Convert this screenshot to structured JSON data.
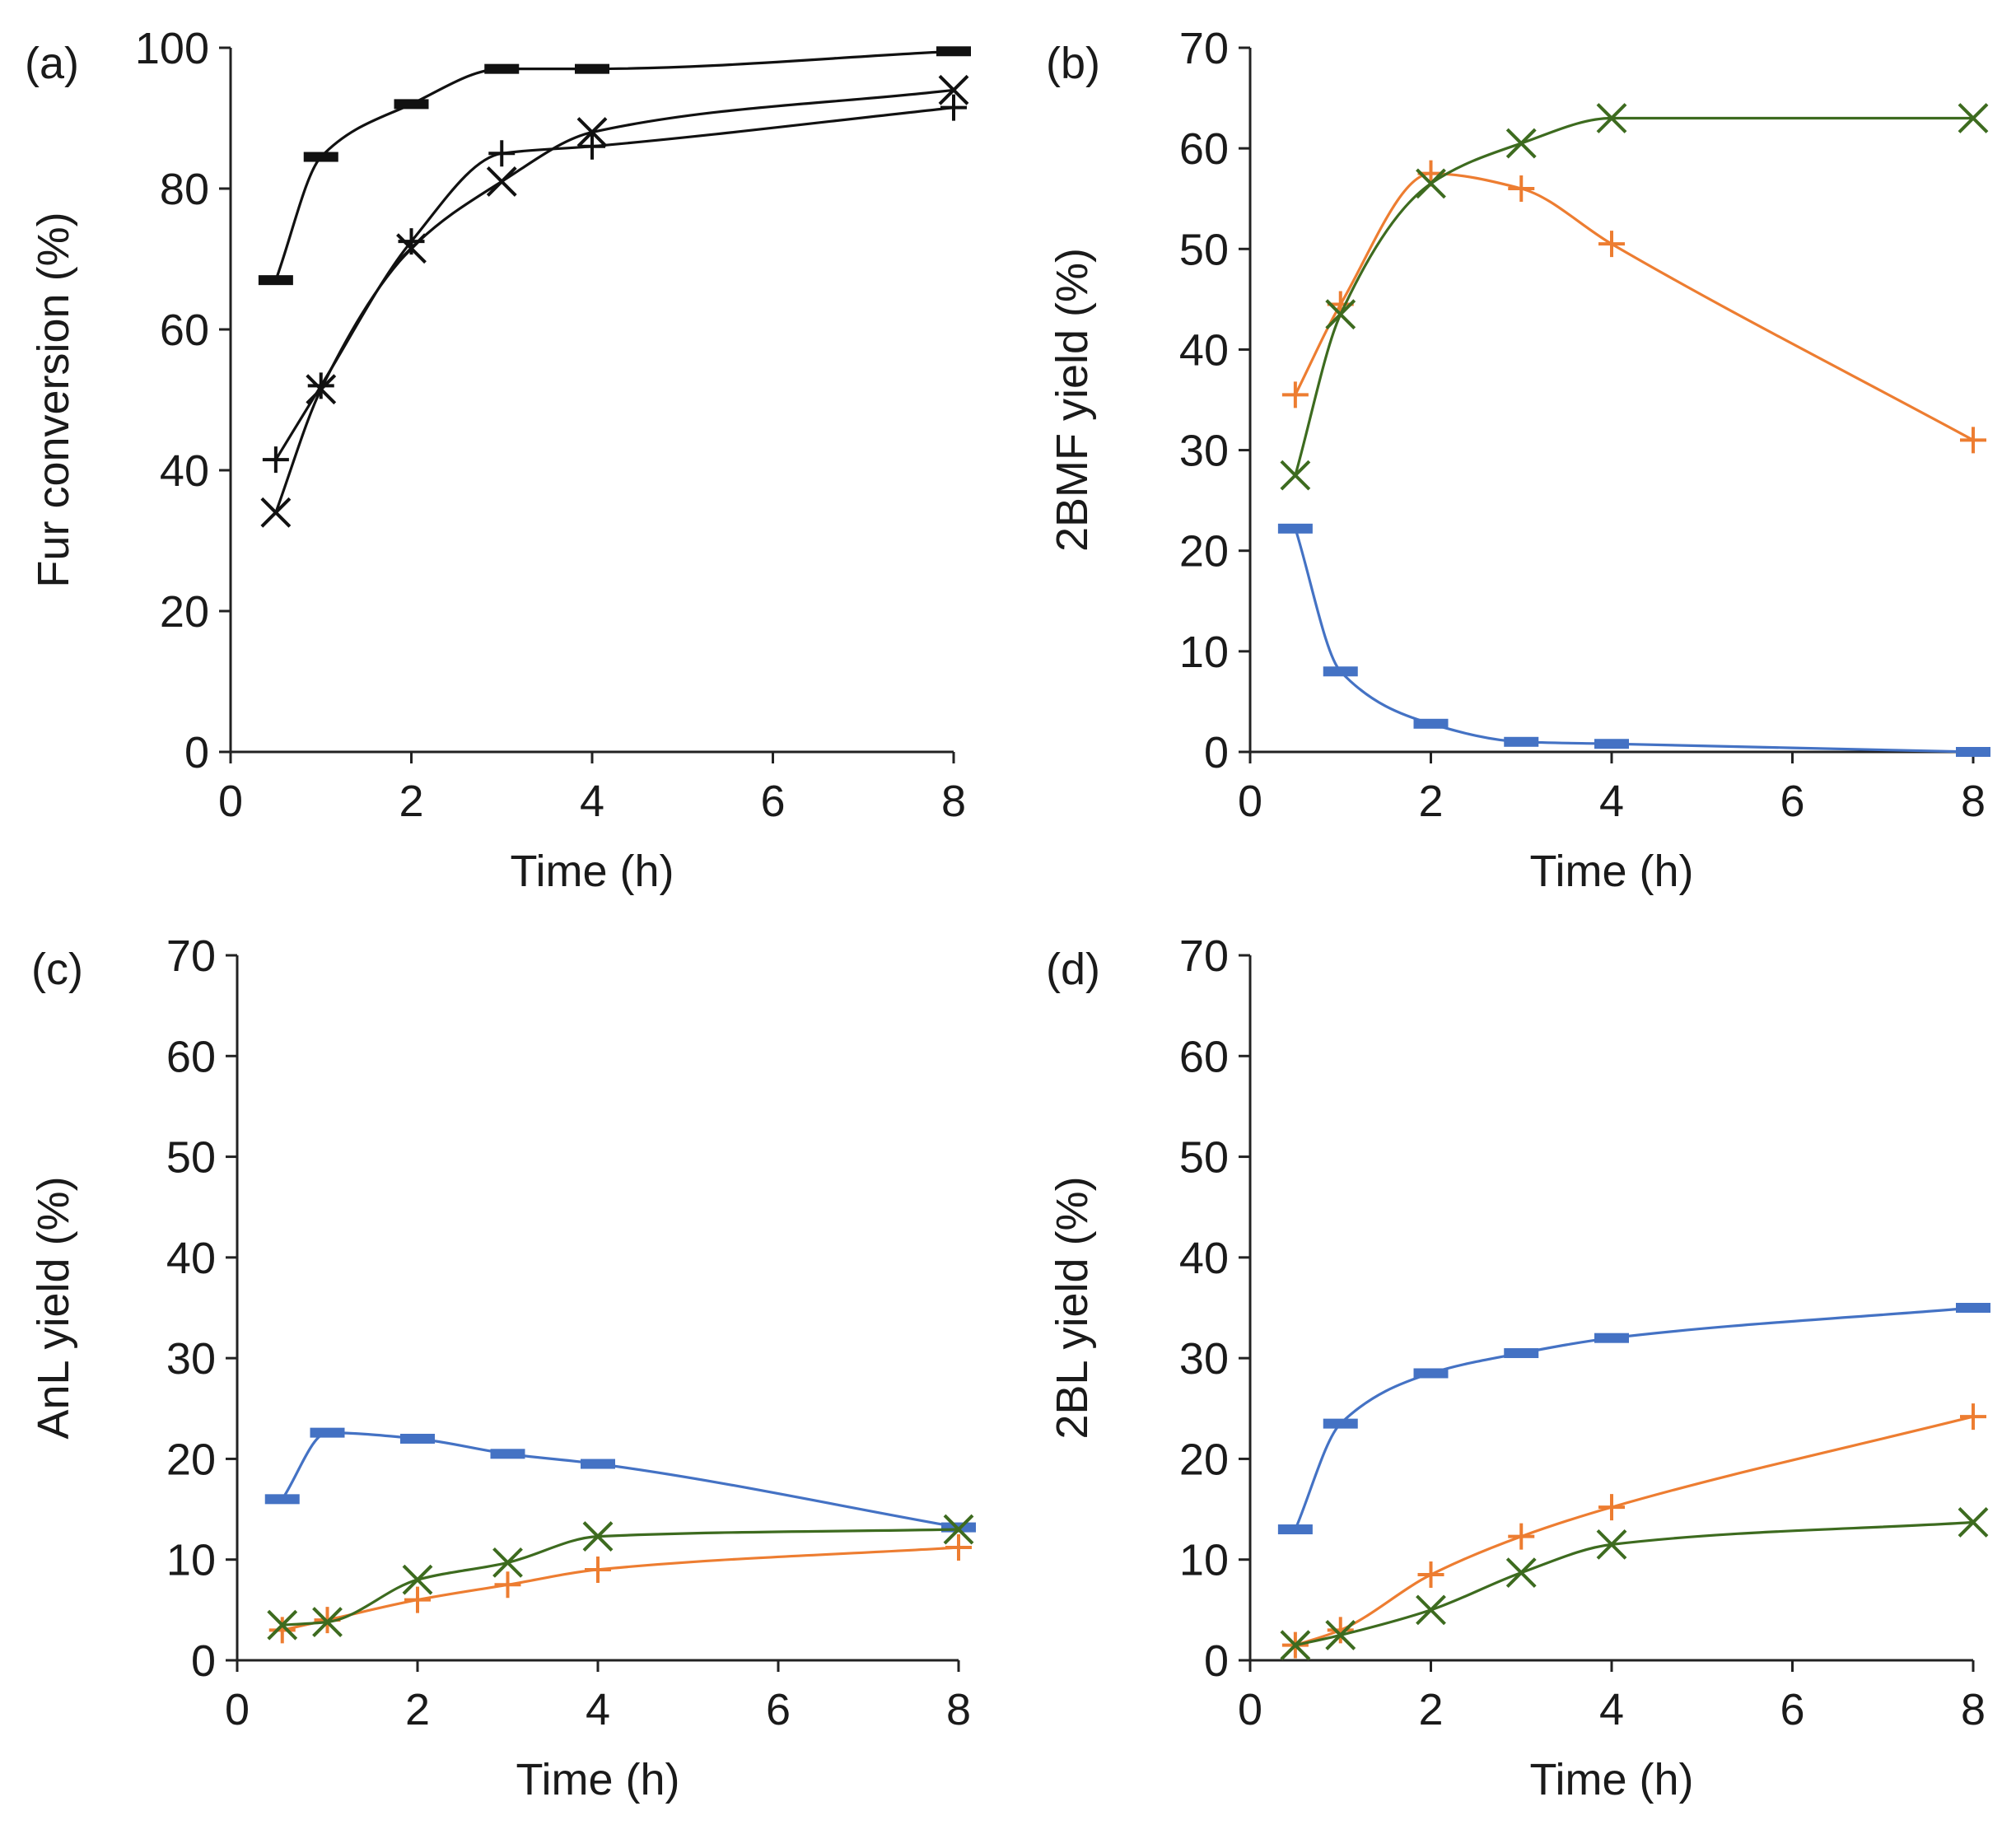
{
  "figure": {
    "colors": {
      "blue": "#4472c4",
      "orange": "#ed7d31",
      "green": "#3d6b1f",
      "black": "#111111"
    }
  },
  "chart_data": [
    {
      "id": "a",
      "panel_label": "(a)",
      "type": "line",
      "xlabel": "Time (h)",
      "ylabel": "Fur conversion (%)",
      "xlim": [
        0,
        8
      ],
      "ylim": [
        0,
        100
      ],
      "xticks": [
        "0",
        "2",
        "4",
        "6",
        "8"
      ],
      "yticks": [
        "0",
        "20",
        "40",
        "60",
        "80",
        "100"
      ],
      "x": [
        0.5,
        1,
        2,
        3,
        4,
        8
      ],
      "series": [
        {
          "name": "dash",
          "marker": "dash",
          "color": "#111111",
          "values": [
            67,
            84.5,
            92,
            97,
            97,
            99.5
          ]
        },
        {
          "name": "plus",
          "marker": "plus",
          "color": "#111111",
          "values": [
            41.5,
            52,
            72.5,
            85,
            86,
            91.5
          ]
        },
        {
          "name": "cross",
          "marker": "cross",
          "color": "#111111",
          "values": [
            34,
            51.5,
            71.5,
            81,
            88,
            94
          ]
        }
      ]
    },
    {
      "id": "b",
      "panel_label": "(b)",
      "type": "line",
      "xlabel": "Time (h)",
      "ylabel": "2BMF yield (%)",
      "xlim": [
        0,
        8
      ],
      "ylim": [
        0,
        70
      ],
      "xticks": [
        "0",
        "2",
        "4",
        "6",
        "8"
      ],
      "yticks": [
        "0",
        "10",
        "20",
        "30",
        "40",
        "50",
        "60",
        "70"
      ],
      "x": [
        0.5,
        1,
        2,
        3,
        4,
        8
      ],
      "series": [
        {
          "name": "dash",
          "marker": "dash",
          "color": "#4472c4",
          "values": [
            22.2,
            8,
            2.8,
            1,
            0.8,
            0
          ]
        },
        {
          "name": "plus",
          "marker": "plus",
          "color": "#ed7d31",
          "values": [
            35.5,
            44.5,
            57.5,
            56,
            50.5,
            31
          ]
        },
        {
          "name": "cross",
          "marker": "cross",
          "color": "#3d6b1f",
          "values": [
            27.5,
            43.5,
            56.5,
            60.5,
            63,
            63
          ]
        }
      ]
    },
    {
      "id": "c",
      "panel_label": "(c)",
      "type": "line",
      "xlabel": "Time (h)",
      "ylabel": "AnL yield (%)",
      "xlim": [
        0,
        8
      ],
      "ylim": [
        0,
        70
      ],
      "xticks": [
        "0",
        "2",
        "4",
        "6",
        "8"
      ],
      "yticks": [
        "0",
        "10",
        "20",
        "30",
        "40",
        "50",
        "60",
        "70"
      ],
      "x": [
        0.5,
        1,
        2,
        3,
        4,
        8
      ],
      "series": [
        {
          "name": "dash",
          "marker": "dash",
          "color": "#4472c4",
          "values": [
            16,
            22.6,
            22,
            20.5,
            19.5,
            13.2
          ]
        },
        {
          "name": "plus",
          "marker": "plus",
          "color": "#ed7d31",
          "values": [
            3,
            4,
            6,
            7.5,
            9,
            11.2
          ]
        },
        {
          "name": "cross",
          "marker": "cross",
          "color": "#3d6b1f",
          "values": [
            3.5,
            3.8,
            8,
            9.7,
            12.3,
            13
          ]
        }
      ]
    },
    {
      "id": "d",
      "panel_label": "(d)",
      "type": "line",
      "xlabel": "Time (h)",
      "ylabel": "2BL yield (%)",
      "xlim": [
        0,
        8
      ],
      "ylim": [
        0,
        70
      ],
      "xticks": [
        "0",
        "2",
        "4",
        "6",
        "8"
      ],
      "yticks": [
        "0",
        "10",
        "20",
        "30",
        "40",
        "50",
        "60",
        "70"
      ],
      "x": [
        0.5,
        1,
        2,
        3,
        4,
        8
      ],
      "series": [
        {
          "name": "dash",
          "marker": "dash",
          "color": "#4472c4",
          "values": [
            13,
            23.5,
            28.5,
            30.5,
            32,
            35
          ]
        },
        {
          "name": "plus",
          "marker": "plus",
          "color": "#ed7d31",
          "values": [
            1.5,
            3,
            8.5,
            12.3,
            15.2,
            24.2
          ]
        },
        {
          "name": "cross",
          "marker": "cross",
          "color": "#3d6b1f",
          "values": [
            1.5,
            2.5,
            5,
            8.7,
            11.5,
            13.7
          ]
        }
      ]
    }
  ]
}
